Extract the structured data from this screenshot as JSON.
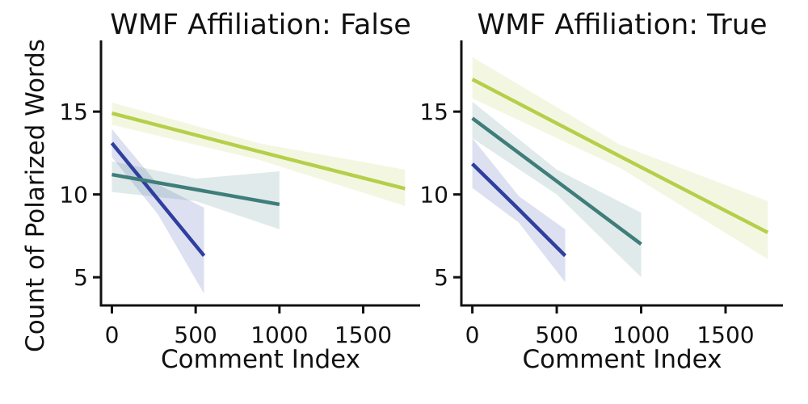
{
  "figure": {
    "background": "#ffffff",
    "axis_color": "#111111",
    "shared_ylabel": "Count of Polarized Words",
    "shared_xlabel": "Comment Index"
  },
  "chart_data": [
    {
      "type": "line",
      "title": "WMF Affiliation: False",
      "xlabel": "Comment Index",
      "ylabel": "Count of Polarized Words",
      "xlim": [
        -65,
        1840
      ],
      "ylim": [
        3.3,
        19.3
      ],
      "xticks": [
        0,
        500,
        1000,
        1500
      ],
      "yticks": [
        5,
        10,
        15
      ],
      "grid": false,
      "legend": false,
      "series": [
        {
          "name": "dark-blue-group",
          "color": "#2e3fa0",
          "x": [
            0,
            275,
            550
          ],
          "y": [
            13.1,
            9.7,
            6.3
          ],
          "ci_upper": [
            13.95,
            10.6,
            9.2
          ],
          "ci_lower": [
            12.25,
            8.8,
            4.0
          ]
        },
        {
          "name": "teal-group",
          "color": "#3f7d7a",
          "x": [
            0,
            500,
            1000
          ],
          "y": [
            11.2,
            10.3,
            9.4
          ],
          "ci_upper": [
            12.0,
            10.95,
            11.4
          ],
          "ci_lower": [
            10.15,
            9.6,
            7.9
          ]
        },
        {
          "name": "yellow-green-group",
          "color": "#b5cf4a",
          "x": [
            0,
            875,
            1750
          ],
          "y": [
            14.9,
            12.6,
            10.35
          ],
          "ci_upper": [
            15.55,
            13.1,
            11.5
          ],
          "ci_lower": [
            14.2,
            12.1,
            9.3
          ]
        }
      ]
    },
    {
      "type": "line",
      "title": "WMF Affiliation: True",
      "xlabel": "Comment Index",
      "ylabel": "Count of Polarized Words",
      "xlim": [
        -65,
        1840
      ],
      "ylim": [
        3.3,
        19.3
      ],
      "xticks": [
        0,
        500,
        1000,
        1500
      ],
      "yticks": [
        5,
        10,
        15
      ],
      "grid": false,
      "legend": false,
      "series": [
        {
          "name": "dark-blue-group",
          "color": "#2e3fa0",
          "x": [
            0,
            275,
            550
          ],
          "y": [
            11.85,
            9.1,
            6.3
          ],
          "ci_upper": [
            13.4,
            9.9,
            7.9
          ],
          "ci_lower": [
            10.4,
            8.3,
            4.7
          ]
        },
        {
          "name": "teal-group",
          "color": "#3f7d7a",
          "x": [
            0,
            500,
            1000
          ],
          "y": [
            14.6,
            10.8,
            7.0
          ],
          "ci_upper": [
            15.6,
            11.5,
            8.9
          ],
          "ci_lower": [
            13.4,
            10.0,
            5.0
          ]
        },
        {
          "name": "yellow-green-group",
          "color": "#b5cf4a",
          "x": [
            0,
            875,
            1750
          ],
          "y": [
            16.95,
            12.3,
            7.7
          ],
          "ci_upper": [
            18.3,
            13.0,
            9.6
          ],
          "ci_lower": [
            15.8,
            11.6,
            6.1
          ]
        }
      ]
    }
  ]
}
